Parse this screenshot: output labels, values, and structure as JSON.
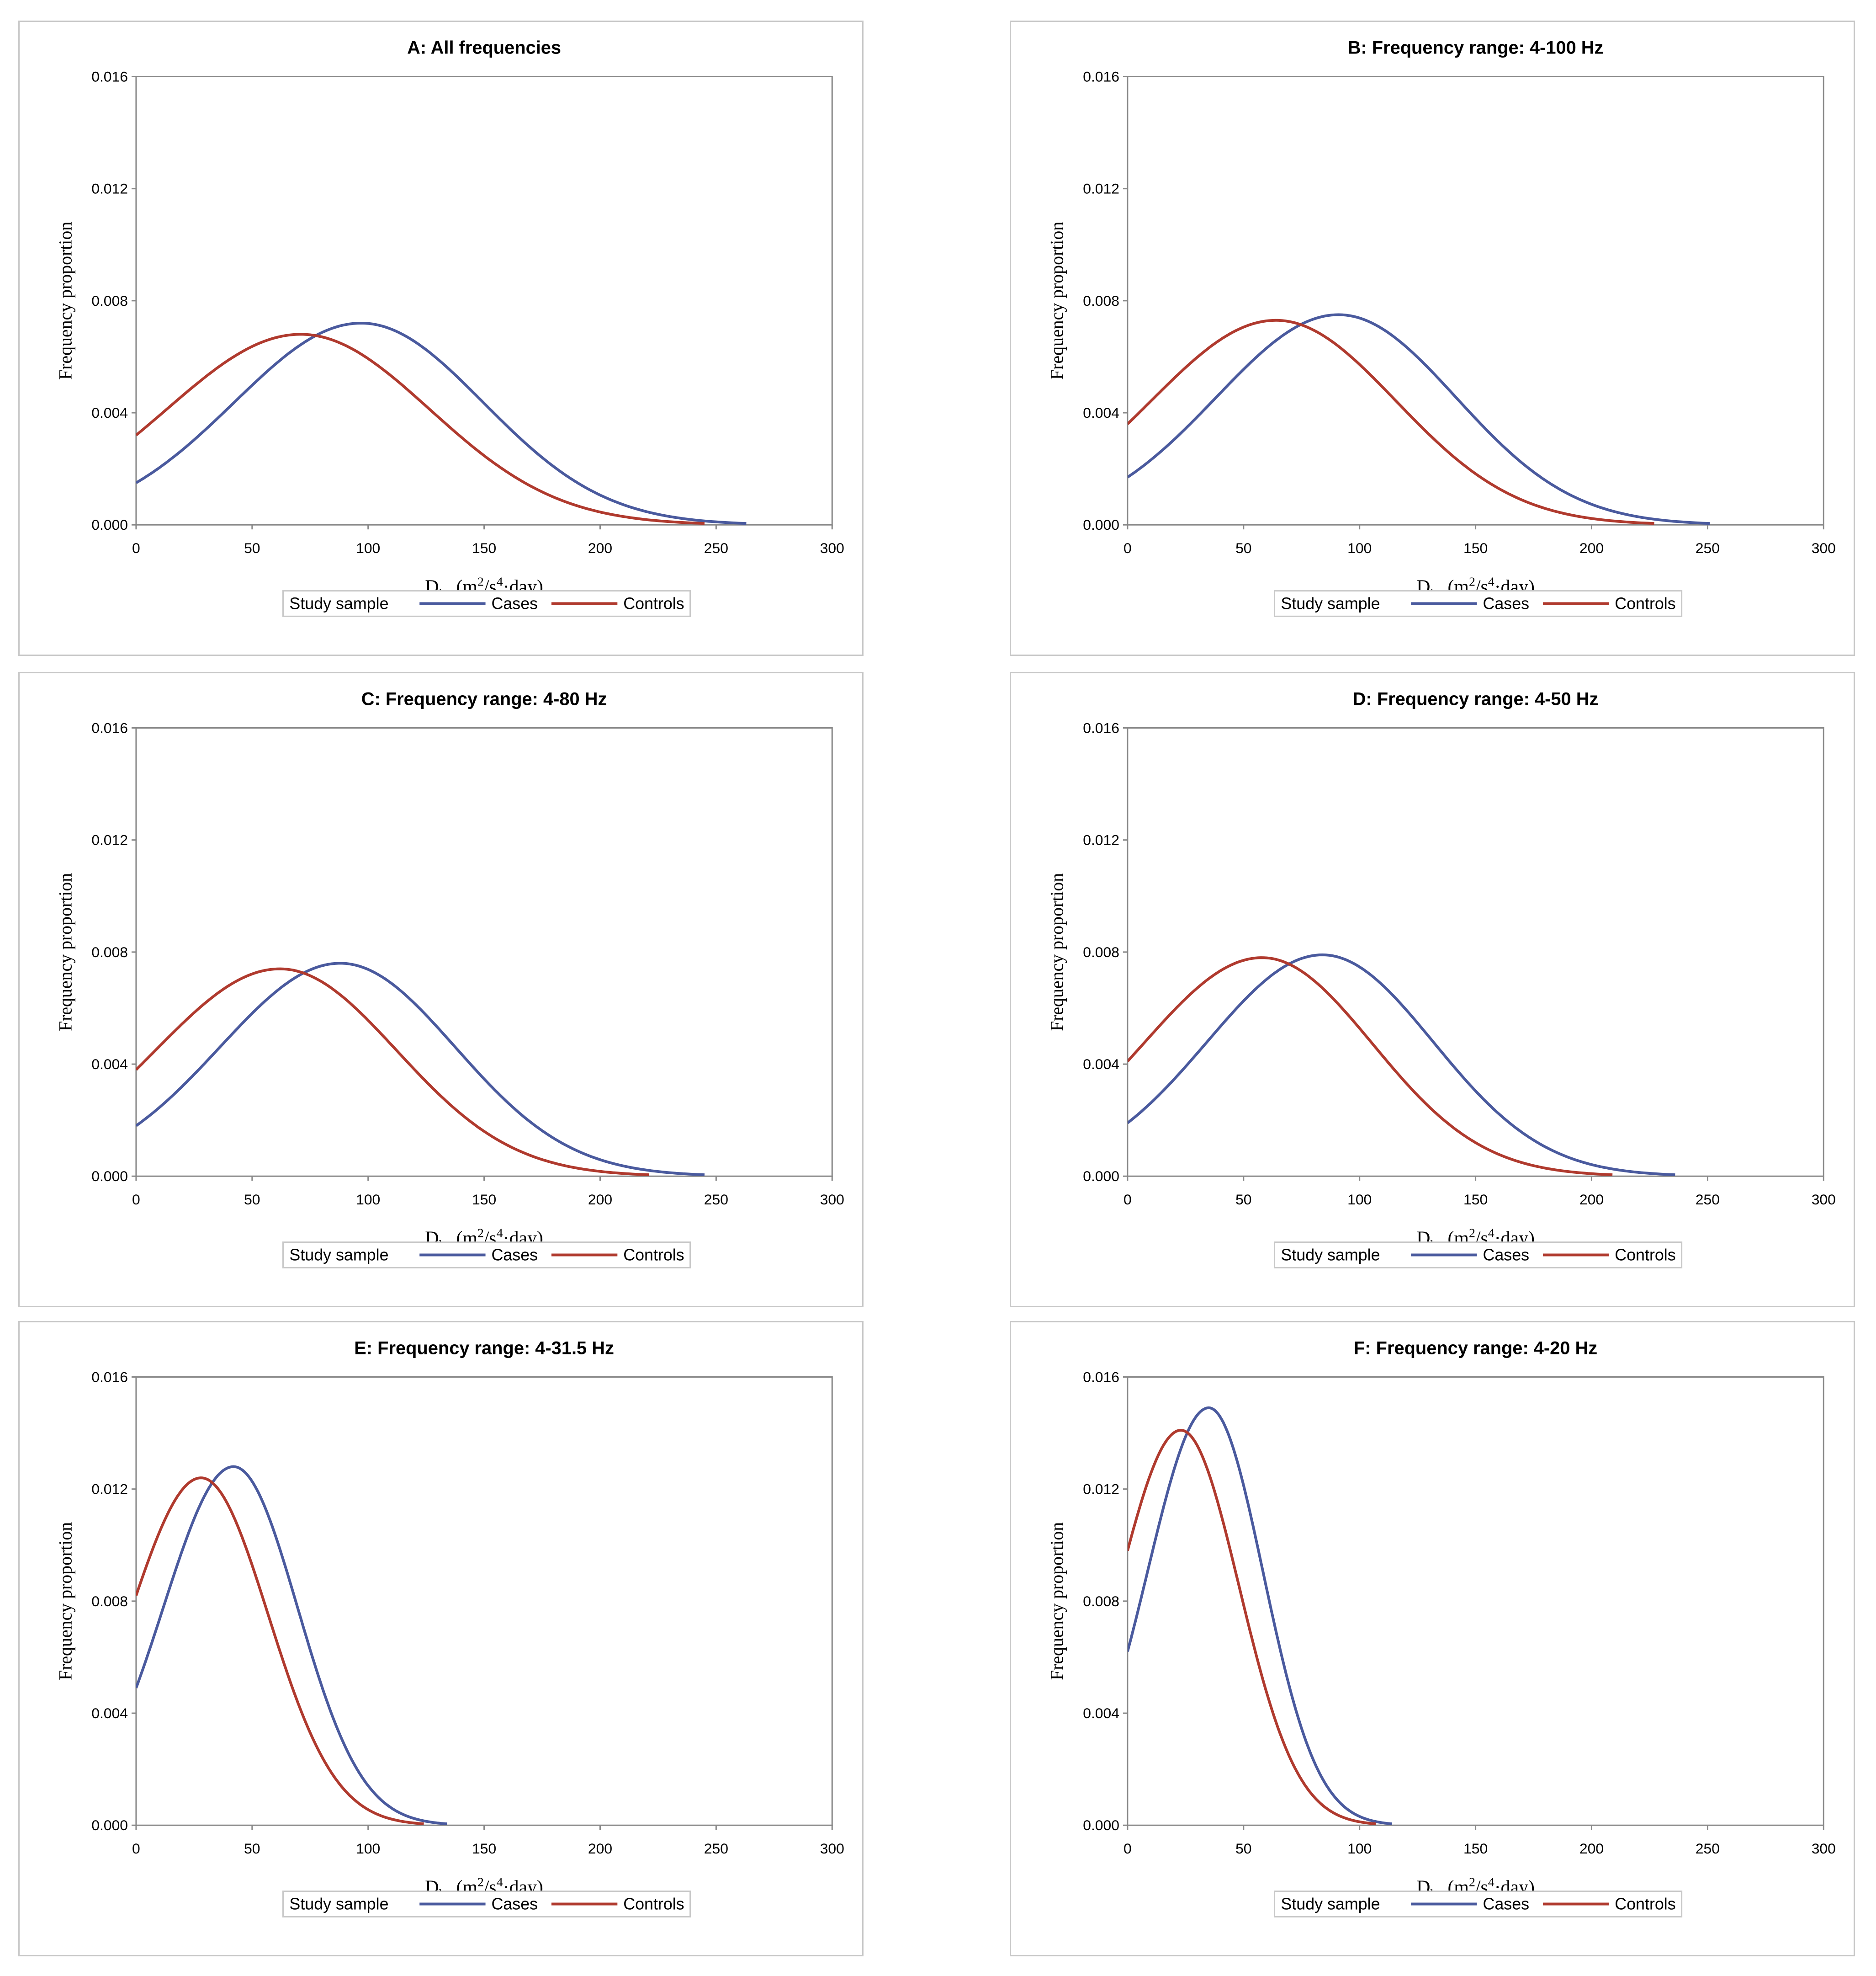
{
  "axis": {
    "ylabel": "Frequency proportion",
    "xlabel_main": "D",
    "xlabel_sub": "hw",
    "xlabel_unit_a": "(m",
    "xlabel_sup1": "2",
    "xlabel_unit_b": "/s",
    "xlabel_sup2": "4",
    "xlabel_unit_c": "·day)",
    "x_ticks": [
      "0",
      "50",
      "100",
      "150",
      "200",
      "250",
      "300"
    ],
    "y_ticks": [
      "0.000",
      "0.004",
      "0.008",
      "0.012",
      "0.016"
    ]
  },
  "legend": {
    "title": "Study sample",
    "cases": "Cases",
    "controls": "Controls"
  },
  "colors": {
    "cases": "#4a5a9e",
    "controls": "#b03a2e",
    "axis": "#888888",
    "frame": "#c8c8c8"
  },
  "chart_data": [
    {
      "type": "line",
      "title": "A: All frequencies",
      "xlim": [
        0,
        300
      ],
      "ylim": [
        0,
        0.016
      ],
      "xlabel": "Dhw(m2/s4·day)",
      "ylabel": "Frequency proportion",
      "series": [
        {
          "name": "Cases",
          "peak_x": 97,
          "peak_y": 0.0072,
          "x_start": 0,
          "x_end": 263,
          "y_at_start": 0.0015,
          "y_at_end": 5e-05
        },
        {
          "name": "Controls",
          "peak_x": 71,
          "peak_y": 0.0068,
          "x_start": 0,
          "x_end": 245,
          "y_at_start": 0.0032,
          "y_at_end": 5e-05
        }
      ]
    },
    {
      "type": "line",
      "title": "B: Frequency range: 4-100 Hz",
      "xlim": [
        0,
        300
      ],
      "ylim": [
        0,
        0.016
      ],
      "xlabel": "Dhw(m2/s4·day)",
      "ylabel": "Frequency proportion",
      "series": [
        {
          "name": "Cases",
          "peak_x": 91,
          "peak_y": 0.0075,
          "x_start": 0,
          "x_end": 251,
          "y_at_start": 0.0017,
          "y_at_end": 5e-05
        },
        {
          "name": "Controls",
          "peak_x": 64,
          "peak_y": 0.0073,
          "x_start": 0,
          "x_end": 227,
          "y_at_start": 0.0036,
          "y_at_end": 5e-05
        }
      ]
    },
    {
      "type": "line",
      "title": "C: Frequency range: 4-80 Hz",
      "xlim": [
        0,
        300
      ],
      "ylim": [
        0,
        0.016
      ],
      "xlabel": "Dhw(m2/s4·day)",
      "ylabel": "Frequency proportion",
      "series": [
        {
          "name": "Cases",
          "peak_x": 88,
          "peak_y": 0.0076,
          "x_start": 0,
          "x_end": 245,
          "y_at_start": 0.0018,
          "y_at_end": 5e-05
        },
        {
          "name": "Controls",
          "peak_x": 62,
          "peak_y": 0.0074,
          "x_start": 0,
          "x_end": 221,
          "y_at_start": 0.0038,
          "y_at_end": 5e-05
        }
      ]
    },
    {
      "type": "line",
      "title": "D: Frequency range: 4-50 Hz",
      "xlim": [
        0,
        300
      ],
      "ylim": [
        0,
        0.016
      ],
      "xlabel": "Dhw(m2/s4·day)",
      "ylabel": "Frequency proportion",
      "series": [
        {
          "name": "Cases",
          "peak_x": 84,
          "peak_y": 0.0079,
          "x_start": 0,
          "x_end": 236,
          "y_at_start": 0.0019,
          "y_at_end": 5e-05
        },
        {
          "name": "Controls",
          "peak_x": 58,
          "peak_y": 0.0078,
          "x_start": 0,
          "x_end": 209,
          "y_at_start": 0.0041,
          "y_at_end": 5e-05
        }
      ]
    },
    {
      "type": "line",
      "title": "E: Frequency range: 4-31.5 Hz",
      "xlim": [
        0,
        300
      ],
      "ylim": [
        0,
        0.016
      ],
      "xlabel": "Dhw(m2/s4·day)",
      "ylabel": "Frequency proportion",
      "series": [
        {
          "name": "Cases",
          "peak_x": 42,
          "peak_y": 0.0128,
          "x_start": 0,
          "x_end": 134,
          "y_at_start": 0.0049,
          "y_at_end": 5e-05
        },
        {
          "name": "Controls",
          "peak_x": 28,
          "peak_y": 0.0124,
          "x_start": 0,
          "x_end": 124,
          "y_at_start": 0.0082,
          "y_at_end": 5e-05
        }
      ]
    },
    {
      "type": "line",
      "title": "F: Frequency range: 4-20 Hz",
      "xlim": [
        0,
        300
      ],
      "ylim": [
        0,
        0.016
      ],
      "xlabel": "Dhw(m2/s4·day)",
      "ylabel": "Frequency proportion",
      "series": [
        {
          "name": "Cases",
          "peak_x": 35,
          "peak_y": 0.0149,
          "x_start": 0,
          "x_end": 114,
          "y_at_start": 0.0062,
          "y_at_end": 5e-05
        },
        {
          "name": "Controls",
          "peak_x": 23,
          "peak_y": 0.0141,
          "x_start": 0,
          "x_end": 107,
          "y_at_start": 0.0098,
          "y_at_end": 5e-05
        }
      ]
    }
  ]
}
